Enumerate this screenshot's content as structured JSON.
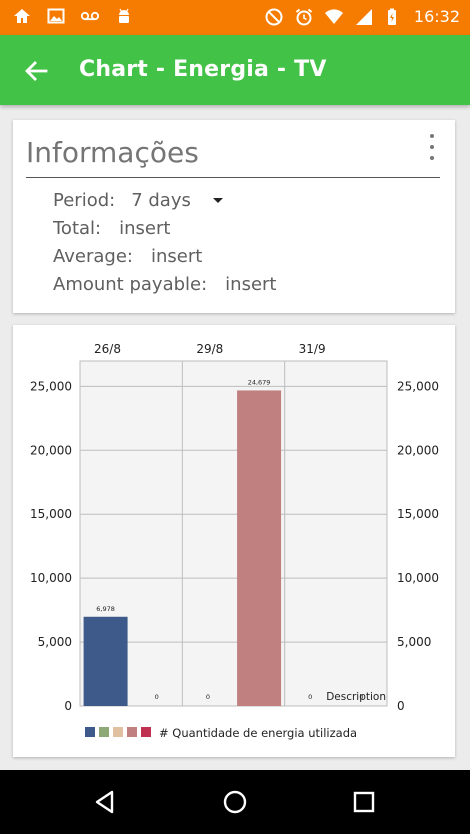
{
  "status_bar": {
    "time": "16:32",
    "left_icons": [
      "home-icon",
      "image-icon",
      "voicemail-icon",
      "android-icon"
    ],
    "right_icons": [
      "do-not-disturb-icon",
      "alarm-icon",
      "wifi-icon",
      "signal-icon",
      "battery-icon"
    ],
    "color": "#f57c00"
  },
  "app_bar": {
    "title": "Chart - Energia - TV",
    "color": "#43c248"
  },
  "info": {
    "title": "Informações",
    "period_label": "Period:",
    "period_value": "7 days",
    "total_label": "Total:",
    "total_value": "insert",
    "average_label": "Average:",
    "average_value": "insert",
    "payable_label": "Amount payable:",
    "payable_value": "insert"
  },
  "chart_data": {
    "type": "bar",
    "x_tick_labels": [
      "26/8",
      "29/8",
      "31/9"
    ],
    "values": [
      6978,
      0,
      0,
      24679,
      0,
      0
    ],
    "value_labels": [
      "6,978",
      "0",
      "0",
      "24,679",
      "0",
      "0"
    ],
    "bar_colors": [
      "#3d5a8a",
      "#8fa878",
      "#e0c0a0",
      "#c08080",
      "#c03050",
      "#c08080"
    ],
    "y_ticks": [
      0,
      5000,
      10000,
      15000,
      20000,
      25000
    ],
    "y_tick_labels": [
      "0",
      "5,000",
      "10,000",
      "15,000",
      "20,000",
      "25,000"
    ],
    "ylim": [
      0,
      25000
    ],
    "grid": true,
    "description": "Description",
    "legend": {
      "colors": [
        "#3d5a8a",
        "#8fa878",
        "#e0c0a0",
        "#c08080",
        "#c03050"
      ],
      "label": "# Quantidade de energia utilizada",
      "placement": "bottom"
    }
  },
  "nav_bar": {
    "icons": [
      "back-triangle-icon",
      "home-circle-icon",
      "recents-square-icon"
    ]
  }
}
